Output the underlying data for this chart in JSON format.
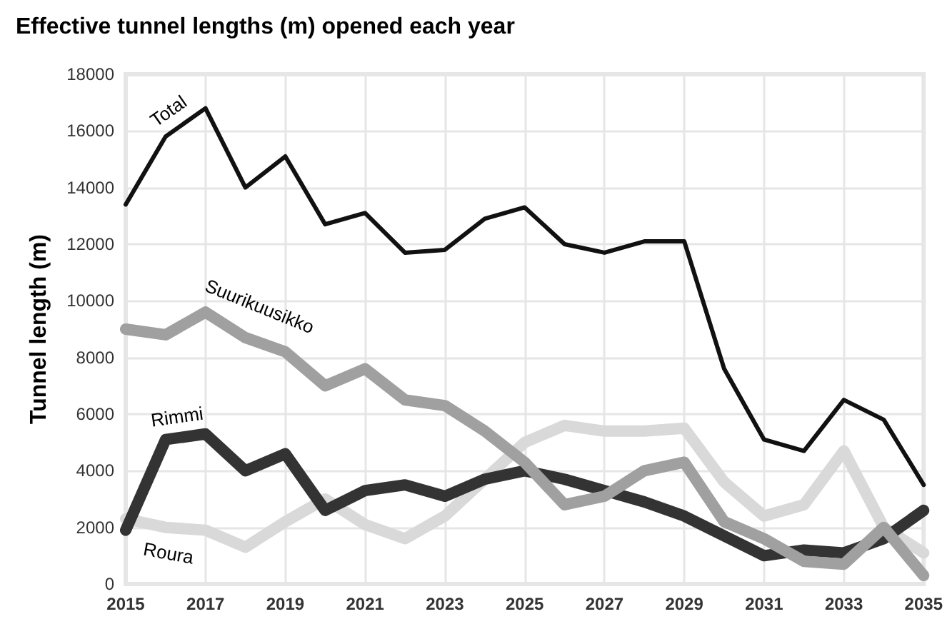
{
  "chart_data": {
    "type": "line",
    "title": "Effective tunnel lengths (m) opened each year",
    "ylabel": "Tunnel length (m)",
    "x": [
      2015,
      2016,
      2017,
      2018,
      2019,
      2020,
      2021,
      2022,
      2023,
      2024,
      2025,
      2026,
      2027,
      2028,
      2029,
      2030,
      2031,
      2032,
      2033,
      2034,
      2035
    ],
    "series": [
      {
        "name": "Total",
        "color": "#111111",
        "values": [
          13400,
          15800,
          16800,
          14000,
          15100,
          12700,
          13100,
          11700,
          11800,
          12900,
          13300,
          12000,
          11700,
          12100,
          12100,
          7600,
          5100,
          4700,
          6500,
          5800,
          3500
        ]
      },
      {
        "name": "Suurikuusikko",
        "color": "#a0a0a0",
        "values": [
          9000,
          8800,
          9600,
          8700,
          8200,
          7000,
          7600,
          6500,
          6300,
          5400,
          4300,
          2800,
          3100,
          4000,
          4300,
          2200,
          1600,
          800,
          700,
          2000,
          300
        ]
      },
      {
        "name": "Rimmi",
        "color": "#333333",
        "values": [
          1900,
          5100,
          5300,
          4000,
          4600,
          2600,
          3300,
          3500,
          3100,
          3700,
          4000,
          3700,
          3300,
          2900,
          2400,
          1700,
          1000,
          1200,
          1100,
          1600,
          2600
        ]
      },
      {
        "name": "Roura",
        "color": "#d9d9d9",
        "values": [
          2300,
          2000,
          1900,
          1300,
          2200,
          3000,
          2100,
          1600,
          2400,
          3700,
          5000,
          5600,
          5400,
          5400,
          5500,
          3600,
          2400,
          2800,
          4700,
          2000,
          1100
        ]
      }
    ],
    "xlim": [
      2015,
      2035
    ],
    "xticks": [
      2015,
      2017,
      2019,
      2021,
      2023,
      2025,
      2027,
      2029,
      2031,
      2033,
      2035
    ],
    "ylim": [
      0,
      18000
    ],
    "yticks": [
      0,
      2000,
      4000,
      6000,
      8000,
      10000,
      12000,
      14000,
      16000,
      18000
    ],
    "grid": true,
    "legend": false,
    "marker": "none",
    "line_style": "solid"
  }
}
